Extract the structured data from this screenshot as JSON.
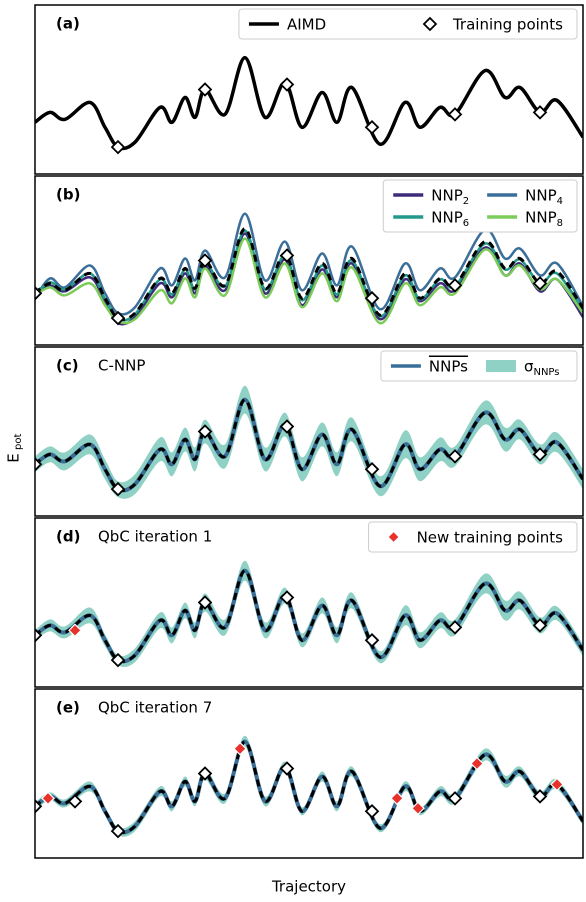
{
  "figure": {
    "ylabel": "E",
    "ylabel_sub": "pot",
    "xlabel": "Trajectory"
  },
  "chart_data": [
    {
      "type": "line",
      "label": "(a)",
      "legend": "upper right",
      "xlim": [
        0,
        548
      ],
      "ylim": [
        -10,
        160
      ],
      "x": [
        0,
        15,
        30,
        55,
        70,
        83,
        100,
        125,
        137,
        150,
        160,
        170,
        190,
        210,
        230,
        250,
        267,
        287,
        302,
        317,
        345,
        370,
        385,
        405,
        420,
        450,
        470,
        485,
        505,
        522,
        548
      ],
      "series": [
        {
          "name": "AIMD",
          "color": "#000000",
          "width": 3.5,
          "values": [
            42,
            52,
            45,
            62,
            37,
            17,
            22,
            57,
            42,
            67,
            47,
            75,
            50,
            107,
            47,
            82,
            37,
            72,
            42,
            77,
            20,
            62,
            37,
            57,
            50,
            94,
            67,
            77,
            52,
            64,
            27
          ]
        }
      ],
      "markers": [
        {
          "name": "Training points",
          "color": "#ffffff",
          "x": [
            83,
            170,
            252,
            337,
            420,
            505
          ],
          "values": [
            17,
            75,
            80,
            37,
            50,
            52
          ]
        }
      ]
    },
    {
      "type": "line",
      "label": "(b)",
      "legend": "upper right",
      "xlim": [
        0,
        548
      ],
      "ylim": [
        -10,
        160
      ],
      "x": [
        0,
        15,
        30,
        55,
        70,
        83,
        100,
        125,
        137,
        150,
        160,
        170,
        190,
        210,
        230,
        250,
        267,
        287,
        302,
        317,
        345,
        370,
        385,
        405,
        420,
        450,
        470,
        485,
        505,
        522,
        548
      ],
      "series": [
        {
          "name": "NNP",
          "sub": "2",
          "color": "#3d2b7a",
          "width": 2.5,
          "values": [
            44,
            50,
            44,
            58,
            34,
            12,
            18,
            52,
            38,
            62,
            42,
            70,
            45,
            102,
            42,
            76,
            30,
            66,
            38,
            72,
            16,
            56,
            34,
            52,
            45,
            88,
            60,
            72,
            44,
            56,
            18
          ]
        },
        {
          "name": "NNP",
          "sub": "4",
          "color": "#3b6f99",
          "width": 2.5,
          "values": [
            37,
            57,
            48,
            70,
            42,
            22,
            28,
            67,
            50,
            77,
            55,
            85,
            58,
            122,
            55,
            94,
            45,
            82,
            50,
            89,
            26,
            72,
            45,
            67,
            58,
            106,
            77,
            87,
            60,
            72,
            29
          ]
        },
        {
          "name": "NNP",
          "sub": "6",
          "color": "#22998a",
          "width": 2.5,
          "values": [
            41,
            53,
            46,
            62,
            36,
            16,
            21,
            56,
            41,
            66,
            46,
            74,
            49,
            105,
            46,
            80,
            35,
            70,
            41,
            75,
            19,
            60,
            36,
            56,
            49,
            92,
            66,
            76,
            52,
            62,
            25
          ]
        },
        {
          "name": "NNP",
          "sub": "8",
          "color": "#7dcb5b",
          "width": 2.5,
          "values": [
            40,
            48,
            40,
            52,
            30,
            14,
            16,
            45,
            32,
            57,
            38,
            67,
            40,
            97,
            38,
            72,
            28,
            62,
            34,
            68,
            12,
            52,
            30,
            48,
            42,
            86,
            60,
            70,
            46,
            56,
            22
          ]
        }
      ],
      "reference": {
        "color": "#000000",
        "values": [
          42,
          52,
          45,
          62,
          37,
          17,
          22,
          57,
          42,
          67,
          47,
          75,
          50,
          107,
          47,
          82,
          37,
          72,
          42,
          77,
          20,
          62,
          37,
          57,
          50,
          94,
          67,
          77,
          52,
          64,
          27
        ]
      },
      "markers": [
        {
          "color": "#ffffff",
          "x": [
            0,
            83,
            170,
            252,
            337,
            420,
            505
          ],
          "values": [
            42,
            17,
            75,
            80,
            37,
            50,
            52
          ]
        }
      ]
    },
    {
      "type": "line",
      "label": "(c)",
      "subtitle": "C-NNP",
      "legend": "upper right",
      "xlim": [
        0,
        548
      ],
      "ylim": [
        -10,
        160
      ],
      "x": [
        0,
        15,
        30,
        55,
        70,
        83,
        100,
        125,
        137,
        150,
        160,
        170,
        190,
        210,
        230,
        250,
        267,
        287,
        302,
        317,
        345,
        370,
        385,
        405,
        420,
        450,
        470,
        485,
        505,
        522,
        548
      ],
      "series": [
        {
          "name": "NNPs",
          "overline": true,
          "color": "#3a6e96",
          "width": 4,
          "values": [
            42,
            52,
            45,
            62,
            37,
            17,
            22,
            57,
            42,
            67,
            47,
            75,
            50,
            107,
            47,
            82,
            37,
            72,
            42,
            77,
            20,
            62,
            37,
            57,
            50,
            94,
            67,
            77,
            52,
            64,
            27
          ],
          "band": {
            "name": "σ",
            "sub": "NNPs",
            "color": "#8fd1c4",
            "values": [
              8,
              8,
              9,
              10,
              10,
              8,
              10,
              12,
              12,
              12,
              12,
              12,
              12,
              14,
              12,
              12,
              12,
              12,
              12,
              12,
              10,
              14,
              12,
              12,
              10,
              12,
              12,
              10,
              10,
              10,
              10
            ]
          }
        }
      ],
      "reference": {
        "color": "#000000",
        "values": [
          42,
          52,
          45,
          62,
          37,
          17,
          22,
          57,
          42,
          67,
          47,
          75,
          50,
          107,
          47,
          82,
          37,
          72,
          42,
          77,
          20,
          62,
          37,
          57,
          50,
          94,
          67,
          77,
          52,
          64,
          27
        ]
      },
      "markers": [
        {
          "color": "#ffffff",
          "x": [
            0,
            83,
            170,
            252,
            337,
            420,
            505
          ],
          "values": [
            42,
            17,
            75,
            80,
            37,
            50,
            52
          ]
        }
      ]
    },
    {
      "type": "line",
      "label": "(d)",
      "subtitle": "QbC iteration 1",
      "legend": "upper right",
      "xlim": [
        0,
        548
      ],
      "ylim": [
        -10,
        160
      ],
      "x": [
        0,
        15,
        30,
        55,
        70,
        83,
        100,
        125,
        137,
        150,
        160,
        170,
        190,
        210,
        230,
        250,
        267,
        287,
        302,
        317,
        345,
        370,
        385,
        405,
        420,
        450,
        470,
        485,
        505,
        522,
        548
      ],
      "series": [
        {
          "color": "#3a6e96",
          "width": 4,
          "values": [
            42,
            52,
            45,
            62,
            37,
            17,
            22,
            57,
            42,
            67,
            47,
            75,
            50,
            107,
            47,
            82,
            37,
            72,
            42,
            77,
            20,
            62,
            37,
            57,
            50,
            94,
            67,
            77,
            52,
            64,
            27
          ],
          "band": {
            "color": "#8fd1c4",
            "values": [
              5,
              6,
              6,
              8,
              6,
              5,
              7,
              8,
              8,
              8,
              8,
              9,
              8,
              10,
              8,
              8,
              7,
              8,
              8,
              8,
              6,
              10,
              8,
              8,
              8,
              10,
              10,
              9,
              8,
              7,
              6
            ]
          }
        }
      ],
      "reference": {
        "color": "#000000",
        "values": [
          42,
          52,
          45,
          62,
          37,
          17,
          22,
          57,
          42,
          67,
          47,
          75,
          50,
          107,
          47,
          82,
          37,
          72,
          42,
          77,
          20,
          62,
          37,
          57,
          50,
          94,
          67,
          77,
          52,
          64,
          27
        ]
      },
      "markers": [
        {
          "color": "#ffffff",
          "x": [
            0,
            83,
            170,
            252,
            337,
            420,
            505
          ],
          "values": [
            42,
            17,
            75,
            80,
            37,
            50,
            52
          ]
        },
        {
          "name": "New training points",
          "color": "#e8312b",
          "x": [
            40
          ],
          "values": [
            47
          ]
        }
      ]
    },
    {
      "type": "line",
      "label": "(e)",
      "subtitle": "QbC iteration 7",
      "legend": "upper right",
      "xlim": [
        0,
        548
      ],
      "ylim": [
        -10,
        160
      ],
      "x": [
        0,
        15,
        30,
        55,
        70,
        83,
        100,
        125,
        137,
        150,
        160,
        170,
        190,
        210,
        230,
        250,
        267,
        287,
        302,
        317,
        345,
        370,
        385,
        405,
        420,
        450,
        470,
        485,
        505,
        522,
        548
      ],
      "series": [
        {
          "color": "#3a6e96",
          "width": 4,
          "values": [
            42,
            52,
            45,
            62,
            37,
            17,
            22,
            57,
            42,
            67,
            47,
            75,
            50,
            107,
            47,
            82,
            37,
            72,
            42,
            77,
            20,
            62,
            37,
            57,
            50,
            94,
            67,
            77,
            52,
            64,
            27
          ],
          "band": {
            "color": "#8fd1c4",
            "values": [
              4,
              4,
              4,
              5,
              4,
              4,
              5,
              5,
              5,
              5,
              5,
              6,
              5,
              6,
              5,
              5,
              4,
              5,
              5,
              5,
              4,
              5,
              4,
              5,
              5,
              6,
              6,
              5,
              5,
              5,
              4
            ]
          }
        }
      ],
      "reference": {
        "color": "#000000",
        "values": [
          42,
          52,
          45,
          62,
          37,
          17,
          22,
          57,
          42,
          67,
          47,
          75,
          50,
          107,
          47,
          82,
          37,
          72,
          42,
          77,
          20,
          62,
          37,
          57,
          50,
          94,
          67,
          77,
          52,
          64,
          27
        ]
      },
      "markers": [
        {
          "color": "#ffffff",
          "x": [
            0,
            40,
            83,
            170,
            252,
            337,
            420,
            505
          ],
          "values": [
            42,
            47,
            17,
            75,
            80,
            37,
            50,
            52
          ]
        },
        {
          "color": "#e8312b",
          "x": [
            13,
            205,
            362,
            383,
            442,
            522
          ],
          "values": [
            50,
            100,
            50,
            40,
            85,
            64
          ]
        }
      ]
    }
  ]
}
